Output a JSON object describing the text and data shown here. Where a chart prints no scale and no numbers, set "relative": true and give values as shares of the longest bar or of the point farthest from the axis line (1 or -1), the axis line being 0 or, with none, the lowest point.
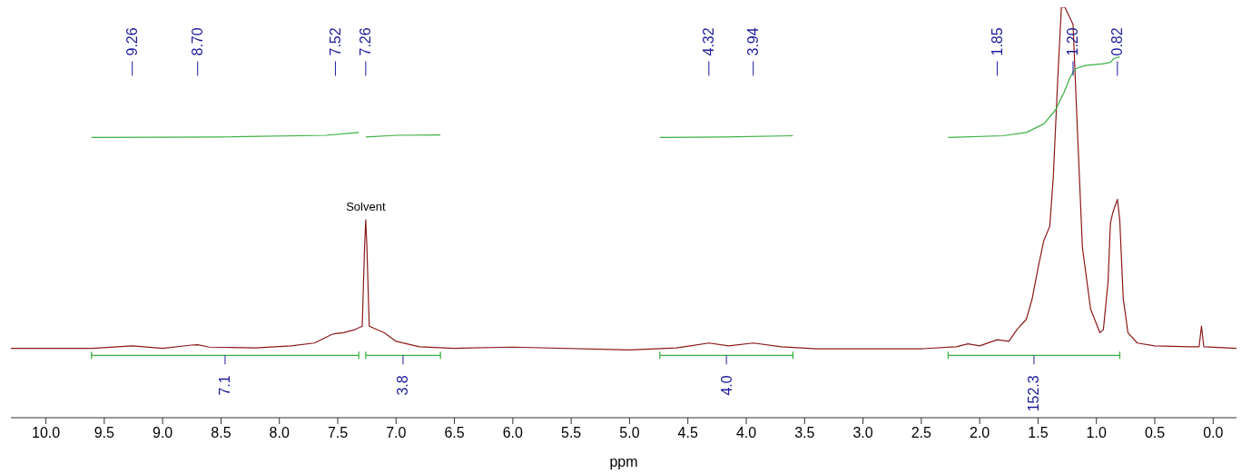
{
  "chart_data": {
    "type": "line",
    "relative": true,
    "xlabel": "ppm",
    "xlim": [
      10.3,
      -0.2
    ],
    "xticks": [
      {
        "value": 10,
        "label": "10.0"
      },
      {
        "value": 9.5,
        "label": "9.5"
      },
      {
        "value": 9,
        "label": "9.0"
      },
      {
        "value": 8.5,
        "label": "8.5"
      },
      {
        "value": 8,
        "label": "8.0"
      },
      {
        "value": 7.5,
        "label": "7.5"
      },
      {
        "value": 7,
        "label": "7.0"
      },
      {
        "value": 6.5,
        "label": "6.5"
      },
      {
        "value": 6,
        "label": "6.0"
      },
      {
        "value": 5.5,
        "label": "5.5"
      },
      {
        "value": 5,
        "label": "5.0"
      },
      {
        "value": 4.5,
        "label": "4.5"
      },
      {
        "value": 4,
        "label": "4.0"
      },
      {
        "value": 3.5,
        "label": "3.5"
      },
      {
        "value": 3,
        "label": "3.0"
      },
      {
        "value": 2.5,
        "label": "2.5"
      },
      {
        "value": 2,
        "label": "2.0"
      },
      {
        "value": 1.5,
        "label": "1.5"
      },
      {
        "value": 1,
        "label": "1.0"
      },
      {
        "value": 0.5,
        "label": "0.5"
      },
      {
        "value": 0,
        "label": "0.0"
      }
    ],
    "marker": "none",
    "line_style": "solid",
    "series": [
      {
        "color": "#8b1a1a",
        "x": [
          10.3,
          9.6,
          9.26,
          9.0,
          8.75,
          8.7,
          8.6,
          8.2,
          7.9,
          7.7,
          7.55,
          7.52,
          7.45,
          7.35,
          7.29,
          7.27,
          7.26,
          7.25,
          7.23,
          7.1,
          7.0,
          6.8,
          6.5,
          6.0,
          5.0,
          4.6,
          4.32,
          4.15,
          3.94,
          3.7,
          3.4,
          2.5,
          2.2,
          2.1,
          2.0,
          1.85,
          1.75,
          1.68,
          1.6,
          1.55,
          1.5,
          1.45,
          1.4,
          1.37,
          1.33,
          1.3,
          1.27,
          1.2,
          1.17,
          1.12,
          1.05,
          0.97,
          0.94,
          0.9,
          0.88,
          0.86,
          0.84,
          0.82,
          0.8,
          0.77,
          0.73,
          0.65,
          0.5,
          0.2,
          0.12,
          0.1,
          0.08,
          -0.2
        ],
        "values": [
          0.169,
          0.169,
          0.175,
          0.169,
          0.177,
          0.178,
          0.172,
          0.17,
          0.175,
          0.182,
          0.203,
          0.205,
          0.207,
          0.215,
          0.223,
          0.416,
          0.482,
          0.416,
          0.223,
          0.207,
          0.186,
          0.173,
          0.169,
          0.172,
          0.165,
          0.17,
          0.182,
          0.175,
          0.182,
          0.173,
          0.168,
          0.168,
          0.173,
          0.18,
          0.175,
          0.19,
          0.186,
          0.215,
          0.24,
          0.29,
          0.365,
          0.432,
          0.466,
          0.583,
          0.833,
          1,
          1,
          0.958,
          0.75,
          0.415,
          0.265,
          0.207,
          0.215,
          0.332,
          0.474,
          0.499,
          0.516,
          0.532,
          0.482,
          0.29,
          0.207,
          0.182,
          0.175,
          0.173,
          0.173,
          0.223,
          0.173,
          0.169
        ]
      },
      {
        "color": "#3cb043",
        "x": [
          9.61,
          8.5,
          7.6,
          7.32,
          7.29,
          7.26,
          7.0,
          6.62,
          5.5,
          4.74,
          4.2,
          3.6,
          3.0,
          2.27,
          1.8,
          1.6,
          1.45,
          1.35,
          1.28,
          1.22,
          1.18,
          1.1,
          0.95,
          0.88,
          0.85,
          0.8
        ],
        "values": [
          0.683,
          0.684,
          0.688,
          0.695,
          null,
          0.684,
          0.688,
          0.689,
          null,
          0.683,
          0.684,
          0.687,
          null,
          0.683,
          0.687,
          0.695,
          0.716,
          0.75,
          0.791,
          0.833,
          0.85,
          0.858,
          0.862,
          0.866,
          0.875,
          0.879
        ]
      }
    ],
    "annotations": [
      {
        "text": "9.26",
        "x": 9.26
      },
      {
        "text": "8.70",
        "x": 8.7
      },
      {
        "text": "7.52",
        "x": 7.52
      },
      {
        "text": "7.26",
        "x": 7.26
      },
      {
        "text": "4.32",
        "x": 4.32
      },
      {
        "text": "3.94",
        "x": 3.94
      },
      {
        "text": "1.85",
        "x": 1.85
      },
      {
        "text": "1.20",
        "x": 1.2
      },
      {
        "text": "0.82",
        "x": 0.82
      },
      {
        "text": "Solvent",
        "x": 7.26,
        "y": 0.482
      },
      "7.1",
      "3.8",
      "4.0",
      "152.3"
    ]
  }
}
